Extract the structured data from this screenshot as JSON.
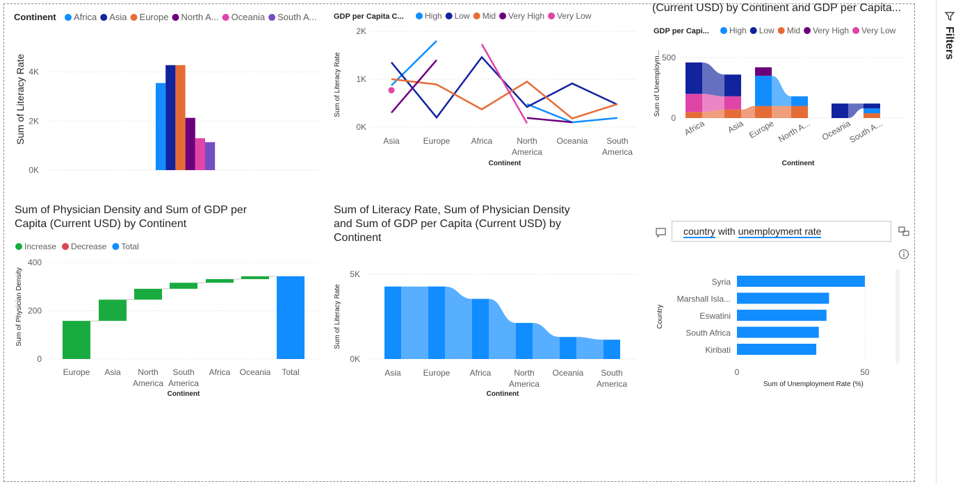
{
  "filters_pane": {
    "label": "Filters",
    "icon": "filter-icon"
  },
  "colors": {
    "africa": "#118dff",
    "asia": "#12239e",
    "europe": "#e66c37",
    "north_america": "#6b007b",
    "oceania": "#e044a7",
    "south_america": "#744ec2",
    "high": "#118dff",
    "low": "#12239e",
    "mid": "#e66c37",
    "very_high": "#6b007b",
    "very_low": "#e044a7",
    "increase": "#1aab40",
    "decrease": "#d64554",
    "total": "#118dff"
  },
  "visual1": {
    "legend_title": "Continent",
    "legend": [
      "Africa",
      "Asia",
      "Europe",
      "North A...",
      "Oceania",
      "South A..."
    ],
    "ylabel": "Sum of Literacy Rate",
    "yticks": [
      "4K",
      "2K",
      "0K"
    ]
  },
  "visual2": {
    "legend_title": "GDP per Capita C...",
    "legend": [
      "High",
      "Low",
      "Mid",
      "Very High",
      "Very Low"
    ],
    "ylabel": "Sum of Literacy Rate",
    "xlabel": "Continent",
    "yticks": [
      "2K",
      "1K",
      "0K"
    ],
    "xticks": [
      [
        "Asia"
      ],
      [
        "Europe"
      ],
      [
        "Africa"
      ],
      [
        "North",
        "America"
      ],
      [
        "Oceania"
      ],
      [
        "South",
        "America"
      ]
    ]
  },
  "visual3": {
    "title": "(Current USD) by Continent and GDP per Capita...",
    "legend_title": "GDP per Capi...",
    "legend": [
      "High",
      "Low",
      "Mid",
      "Very High",
      "Very Low"
    ],
    "ylabel": "Sum of Unemploym...",
    "xlabel": "Continent",
    "yticks": [
      "500",
      "0"
    ],
    "xticks": [
      "Africa",
      "Asia",
      "Europe",
      "North A...",
      "Oceania",
      "South A..."
    ]
  },
  "visual4": {
    "title_line1": "Sum of Physician Density and Sum of GDP per",
    "title_line2": "Capita (Current USD) by Continent",
    "legend": [
      "Increase",
      "Decrease",
      "Total"
    ],
    "ylabel": "Sum of Physician Density",
    "xlabel": "Continent",
    "yticks": [
      "400",
      "200",
      "0"
    ],
    "xticks": [
      [
        "Europe"
      ],
      [
        "Asia"
      ],
      [
        "North",
        "America"
      ],
      [
        "South",
        "America"
      ],
      [
        "Africa"
      ],
      [
        "Oceania"
      ],
      [
        "Total"
      ]
    ]
  },
  "visual5": {
    "title_line1": "Sum of Literacy Rate, Sum of Physician Density",
    "title_line2": "and Sum of GDP per Capita (Current USD) by",
    "title_line3": "Continent",
    "ylabel": "Sum of Literacy Rate",
    "xlabel": "Continent",
    "yticks": [
      "5K",
      "0K"
    ],
    "xticks": [
      [
        "Asia"
      ],
      [
        "Europe"
      ],
      [
        "Africa"
      ],
      [
        "North",
        "America"
      ],
      [
        "Oceania"
      ],
      [
        "South",
        "America"
      ]
    ]
  },
  "qna": {
    "query_word1": "country",
    "query_word2": "with",
    "query_word3": "unemployment rate",
    "ylabel": "Country",
    "xlabel": "Sum of Unemployment Rate (%)",
    "xticks": [
      "0",
      "50"
    ]
  },
  "chart_data": [
    {
      "type": "bar",
      "categories": [
        "Africa",
        "Asia",
        "Europe",
        "North A...",
        "Oceania",
        "South A..."
      ],
      "values": [
        3550,
        4280,
        4280,
        2130,
        1300,
        1140
      ],
      "ylabel": "Sum of Literacy Rate",
      "ylim": [
        0,
        4500
      ]
    },
    {
      "type": "line",
      "categories": [
        "Asia",
        "Europe",
        "Africa",
        "North America",
        "Oceania",
        "South America"
      ],
      "series": [
        {
          "name": "High",
          "values": [
            870,
            1800,
            null,
            480,
            100,
            190
          ]
        },
        {
          "name": "Low",
          "values": [
            1350,
            200,
            1460,
            420,
            910,
            470
          ]
        },
        {
          "name": "Mid",
          "values": [
            1000,
            890,
            370,
            950,
            180,
            480
          ]
        },
        {
          "name": "Very High",
          "values": [
            300,
            1400,
            null,
            190,
            100,
            null
          ]
        },
        {
          "name": "Very Low",
          "values": [
            770,
            null,
            1730,
            80,
            null,
            null
          ]
        }
      ],
      "ylabel": "Sum of Literacy Rate",
      "xlabel": "Continent",
      "ylim": [
        0,
        2000
      ]
    },
    {
      "type": "area",
      "categories": [
        "Africa",
        "Asia",
        "Europe",
        "North A...",
        "Oceania",
        "South A..."
      ],
      "series": [
        {
          "name": "High",
          "values": [
            0,
            0,
            250,
            80,
            0,
            40
          ]
        },
        {
          "name": "Low",
          "values": [
            260,
            180,
            0,
            0,
            120,
            40
          ]
        },
        {
          "name": "Mid",
          "values": [
            50,
            70,
            100,
            100,
            0,
            40
          ]
        },
        {
          "name": "Very High",
          "values": [
            0,
            0,
            70,
            0,
            0,
            0
          ]
        },
        {
          "name": "Very Low",
          "values": [
            150,
            110,
            0,
            0,
            0,
            0
          ]
        }
      ],
      "ylabel": "Sum of Unemploym...",
      "xlabel": "Continent",
      "ylim": [
        0,
        500
      ]
    },
    {
      "type": "bar",
      "subtype": "waterfall",
      "categories": [
        "Europe",
        "Asia",
        "North America",
        "South America",
        "Africa",
        "Oceania",
        "Total"
      ],
      "values": [
        158,
        88,
        45,
        25,
        15,
        12,
        343
      ],
      "ylabel": "Sum of Physician Density",
      "xlabel": "Continent",
      "ylim": [
        0,
        400
      ]
    },
    {
      "type": "area",
      "subtype": "ribbon",
      "categories": [
        "Asia",
        "Europe",
        "Africa",
        "North America",
        "Oceania",
        "South America"
      ],
      "values": [
        4280,
        4280,
        3550,
        2130,
        1300,
        1140
      ],
      "ylabel": "Sum of Literacy Rate",
      "xlabel": "Continent",
      "ylim": [
        0,
        5000
      ]
    },
    {
      "type": "bar",
      "orientation": "horizontal",
      "categories": [
        "Syria",
        "Marshall Isla...",
        "Eswatini",
        "South Africa",
        "Kiribati"
      ],
      "values": [
        50,
        36,
        35,
        32,
        31
      ],
      "xlabel": "Sum of Unemployment Rate (%)",
      "ylabel": "Country",
      "xlim": [
        0,
        60
      ]
    }
  ]
}
